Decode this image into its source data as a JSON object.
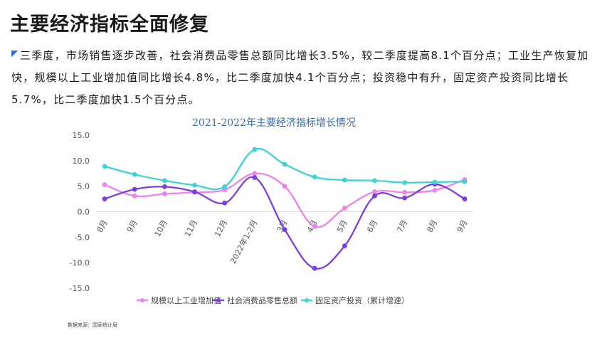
{
  "page": {
    "title": "主要经济指标全面修复",
    "intro": "三季度，市场销售逐步改善，社会消费品零售总额同比增长3.5%，较二季度提高8.1个百分点；工业生产恢复加快，规模以上工业增加值同比增长4.8%，比二季度加快4.1个百分点；投资稳中有升，固定资产投资同比增长5.7%，比二季度加快1.5个百分点。",
    "source": "数据来源：国家统计局"
  },
  "chart_data": {
    "type": "line",
    "title": "2021-2022年主要经济指标增长情况",
    "categories": [
      "8月",
      "9月",
      "10月",
      "11月",
      "12月",
      "2022年1-2月",
      "3月",
      "4月",
      "5月",
      "6月",
      "7月",
      "8月",
      "9月"
    ],
    "ylim": [
      -15,
      15
    ],
    "yticks": [
      "15.0",
      "10.0",
      "5.0",
      "0.0",
      "-5.0",
      "-10.0",
      "-15.0"
    ],
    "ytick_values": [
      15,
      10,
      5,
      0,
      -5,
      -10,
      -15
    ],
    "grid": false,
    "legend_position": "bottom",
    "series": [
      {
        "name": "规模以上工业增加值",
        "color": "#ee82ee",
        "values": [
          5.3,
          3.1,
          3.5,
          3.8,
          4.3,
          7.5,
          5.0,
          -2.9,
          0.7,
          3.9,
          3.8,
          4.2,
          6.3
        ]
      },
      {
        "name": "社会消费品零售总额",
        "color": "#7b3fe0",
        "values": [
          2.5,
          4.4,
          4.9,
          3.9,
          1.7,
          6.7,
          -3.5,
          -11.1,
          -6.7,
          3.1,
          2.7,
          5.4,
          2.5
        ]
      },
      {
        "name": "固定资产投资（累计增速）",
        "color": "#3fd4d4",
        "values": [
          8.9,
          7.3,
          6.1,
          5.2,
          4.9,
          12.2,
          9.3,
          6.8,
          6.2,
          6.1,
          5.7,
          5.8,
          5.9
        ]
      }
    ]
  }
}
